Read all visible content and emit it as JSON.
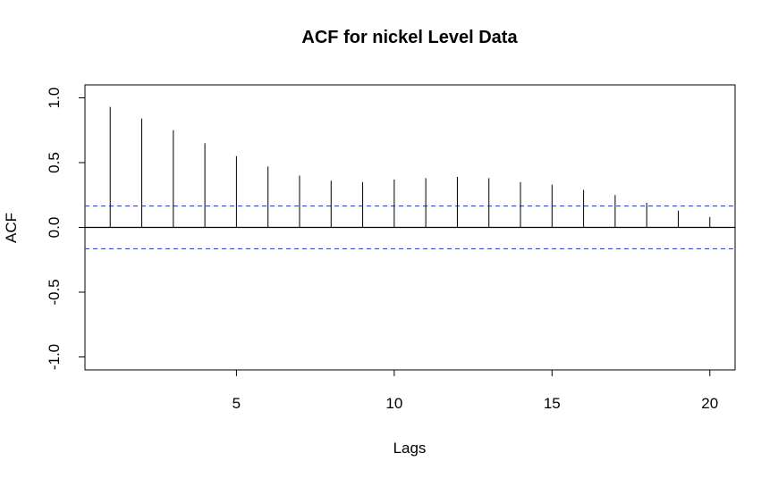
{
  "chart_data": {
    "type": "bar",
    "title": "ACF for nickel Level Data",
    "xlabel": "Lags",
    "ylabel": "ACF",
    "xlim": [
      0.2,
      20.8
    ],
    "ylim": [
      -1.1,
      1.1
    ],
    "x_ticks": [
      5,
      10,
      15,
      20
    ],
    "y_ticks": [
      -1.0,
      -0.5,
      0.0,
      0.5,
      1.0
    ],
    "x_tick_labels": [
      "5",
      "10",
      "15",
      "20"
    ],
    "y_tick_labels": [
      "-1.0",
      "-0.5",
      "0.0",
      "0.5",
      "1.0"
    ],
    "grid": false,
    "lags": [
      1,
      2,
      3,
      4,
      5,
      6,
      7,
      8,
      9,
      10,
      11,
      12,
      13,
      14,
      15,
      16,
      17,
      18,
      19,
      20
    ],
    "values": [
      0.93,
      0.84,
      0.75,
      0.65,
      0.55,
      0.47,
      0.4,
      0.36,
      0.35,
      0.37,
      0.38,
      0.39,
      0.38,
      0.35,
      0.33,
      0.29,
      0.25,
      0.19,
      0.13,
      0.08
    ],
    "confidence_bounds": [
      0.165,
      -0.165
    ],
    "colors": {
      "bar": "#000000",
      "bounds": "#3b4cc0",
      "axis": "#000000"
    }
  }
}
